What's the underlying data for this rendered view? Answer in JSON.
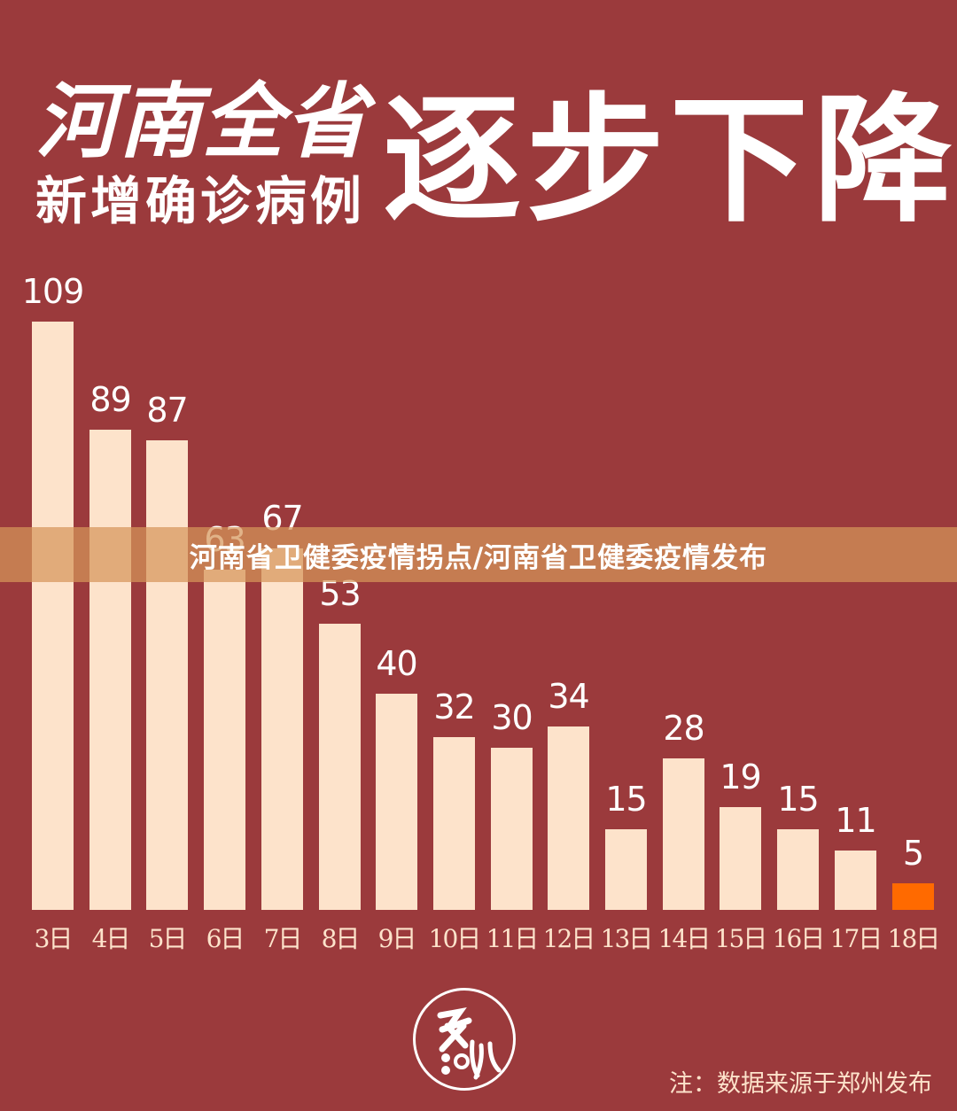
{
  "header": {
    "line1": "河南全省",
    "line2": "新增确诊病例",
    "headline": "逐步下降"
  },
  "banner": {
    "text": "河南省卫健委疫情拐点/河南省卫健委疫情发布"
  },
  "footer": {
    "note": "注：数据来源于郑州发布",
    "logo_label": "logo"
  },
  "colors": {
    "background": "#9b3a3c",
    "bar": "#fde3cb",
    "highlight_bar": "#ff6a00",
    "banner": "#d6965a"
  },
  "chart_data": {
    "type": "bar",
    "title": "河南全省新增确诊病例逐步下降",
    "xlabel": "",
    "ylabel": "新增确诊病例",
    "categories": [
      "3日",
      "4日",
      "5日",
      "6日",
      "7日",
      "8日",
      "9日",
      "10日",
      "11日",
      "12日",
      "13日",
      "14日",
      "15日",
      "16日",
      "17日",
      "18日"
    ],
    "values": [
      109,
      89,
      87,
      63,
      67,
      53,
      40,
      32,
      30,
      34,
      15,
      28,
      19,
      15,
      11,
      5
    ],
    "value_labels": [
      "109",
      "89",
      "87",
      "63",
      "67",
      "53",
      "40",
      "32",
      "30",
      "34",
      "15",
      "28",
      "19",
      "15",
      "11",
      "5"
    ],
    "highlight_index": 15,
    "ylim": [
      0,
      109
    ],
    "grid": false,
    "legend": "none",
    "source": "注：数据来源于郑州发布"
  }
}
